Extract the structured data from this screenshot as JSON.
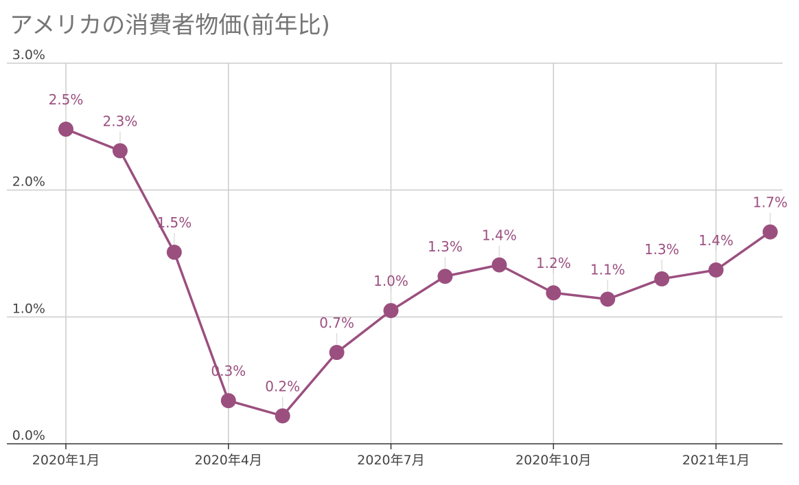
{
  "chart_data": {
    "type": "line",
    "title": "アメリカの消費者物価(前年比)",
    "xlabel": "",
    "ylabel": "",
    "ylim": [
      0,
      3.0
    ],
    "y_ticks": [
      "0.0%",
      "1.0%",
      "2.0%",
      "3.0%"
    ],
    "y_tick_values": [
      0,
      1.0,
      2.0,
      3.0
    ],
    "x_tick_labels": [
      {
        "index": 0,
        "label": "2020年1月"
      },
      {
        "index": 3,
        "label": "2020年4月"
      },
      {
        "index": 6,
        "label": "2020年7月"
      },
      {
        "index": 9,
        "label": "2020年10月"
      },
      {
        "index": 12,
        "label": "2021年1月"
      }
    ],
    "grid": true,
    "series": [
      {
        "color": "#9b4f7f",
        "values": [
          2.48,
          2.31,
          1.51,
          0.34,
          0.22,
          0.72,
          1.05,
          1.32,
          1.41,
          1.19,
          1.14,
          1.3,
          1.37,
          1.67
        ],
        "data_labels": [
          "2.5%",
          "2.3%",
          "1.5%",
          "0.3%",
          "0.2%",
          "0.7%",
          "1.0%",
          "1.3%",
          "1.4%",
          "1.2%",
          "1.1%",
          "1.3%",
          "1.4%",
          "1.7%"
        ]
      }
    ]
  }
}
